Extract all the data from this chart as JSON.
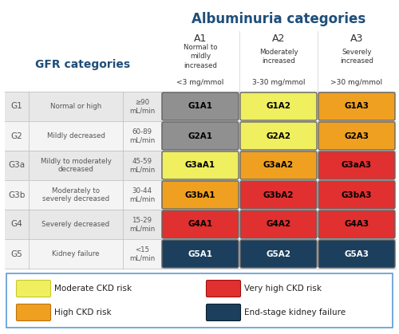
{
  "title": "Albuminuria categories",
  "title_color": "#1F4E79",
  "gfr_title": "GFR categories",
  "gfr_title_color": "#1F4E79",
  "albuminuria_cols": [
    {
      "code": "A1",
      "desc": "Normal to\nmildly\nincreased",
      "range": "<3 mg/mmol"
    },
    {
      "code": "A2",
      "desc": "Moderately\nincreased",
      "range": "3-30 mg/mmol"
    },
    {
      "code": "A3",
      "desc": "Severely\nincreased",
      "range": ">30 mg/mmol"
    }
  ],
  "gfr_rows": [
    {
      "code": "G1",
      "desc": "Normal or high",
      "range": "≥90\nmL/min"
    },
    {
      "code": "G2",
      "desc": "Mildly decreased",
      "range": "60-89\nmL/min"
    },
    {
      "code": "G3a",
      "desc": "Mildly to moderately\ndecreased",
      "range": "45-59\nmL/min"
    },
    {
      "code": "G3b",
      "desc": "Moderately to\nseverely decreased",
      "range": "30-44\nmL/min"
    },
    {
      "code": "G4",
      "desc": "Severely decreased",
      "range": "15-29\nmL/min"
    },
    {
      "code": "G5",
      "desc": "Kidney failure",
      "range": "<15\nmL/min"
    }
  ],
  "cell_colors": [
    [
      "#909090",
      "#EFEF60",
      "#F0A020"
    ],
    [
      "#909090",
      "#EFEF60",
      "#F0A020"
    ],
    [
      "#EFEF60",
      "#F0A020",
      "#E03030"
    ],
    [
      "#F0A020",
      "#E03030",
      "#E03030"
    ],
    [
      "#E03030",
      "#E03030",
      "#E03030"
    ],
    [
      "#1C3F5E",
      "#1C3F5E",
      "#1C3F5E"
    ]
  ],
  "cell_text_colors": [
    [
      "#000000",
      "#000000",
      "#000000"
    ],
    [
      "#000000",
      "#000000",
      "#000000"
    ],
    [
      "#000000",
      "#000000",
      "#000000"
    ],
    [
      "#000000",
      "#000000",
      "#000000"
    ],
    [
      "#000000",
      "#000000",
      "#000000"
    ],
    [
      "#ffffff",
      "#ffffff",
      "#ffffff"
    ]
  ],
  "cell_labels": [
    [
      "G1A1",
      "G1A2",
      "G1A3"
    ],
    [
      "G2A1",
      "G2A2",
      "G2A3"
    ],
    [
      "G3aA1",
      "G3aA2",
      "G3aA3"
    ],
    [
      "G3bA1",
      "G3bA2",
      "G3bA3"
    ],
    [
      "G4A1",
      "G4A2",
      "G4A3"
    ],
    [
      "G5A1",
      "G5A2",
      "G5A3"
    ]
  ],
  "legend_items": [
    {
      "color": "#EFEF60",
      "label": "Moderate CKD risk",
      "border": "#C8C830"
    },
    {
      "color": "#F0A020",
      "label": "High CKD risk",
      "border": "#C07010"
    },
    {
      "color": "#E03030",
      "label": "Very high CKD risk",
      "border": "#A01010"
    },
    {
      "color": "#1C3F5E",
      "label": "End-stage kidney failure",
      "border": "#0A2030"
    }
  ],
  "row_bg_even": "#E8E8E8",
  "row_bg_odd": "#F4F4F4",
  "bg_color": "#ffffff"
}
